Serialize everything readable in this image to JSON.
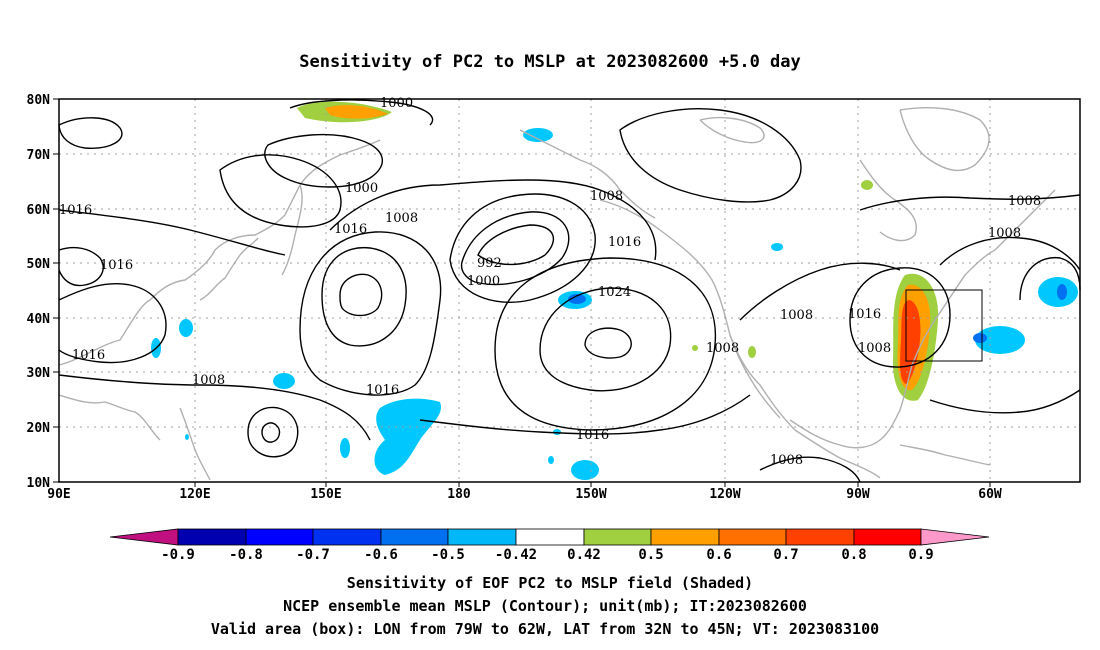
{
  "title": "Sensitivity of PC2 to MSLP at 2023082600 +5.0 day",
  "axes": {
    "lat_ticks": [
      "80N",
      "70N",
      "60N",
      "50N",
      "40N",
      "30N",
      "20N",
      "10N"
    ],
    "lon_ticks": [
      "90E",
      "120E",
      "150E",
      "180",
      "150W",
      "120W",
      "90W",
      "60W"
    ]
  },
  "contour_labels": [
    {
      "text": "1000"
    },
    {
      "text": "1000"
    },
    {
      "text": "1008"
    },
    {
      "text": "1016"
    },
    {
      "text": "1016"
    },
    {
      "text": "1016"
    },
    {
      "text": "992"
    },
    {
      "text": "1000"
    },
    {
      "text": "1008"
    },
    {
      "text": "1016"
    },
    {
      "text": "1024"
    },
    {
      "text": "1008"
    },
    {
      "text": "1016"
    },
    {
      "text": "1016"
    },
    {
      "text": "1008"
    },
    {
      "text": "1016"
    },
    {
      "text": "1008"
    },
    {
      "text": "1008"
    },
    {
      "text": "1008"
    },
    {
      "text": "1008"
    },
    {
      "text": "1008"
    },
    {
      "text": "1016"
    }
  ],
  "colorbar": {
    "labels": [
      "-0.9",
      "-0.8",
      "-0.7",
      "-0.6",
      "-0.5",
      "-0.42",
      "0.42",
      "0.5",
      "0.6",
      "0.7",
      "0.8",
      "0.9"
    ],
    "colors": [
      "#c01080",
      "#0000b0",
      "#0000ff",
      "#0030f0",
      "#0070f0",
      "#00b8f8",
      "#ffffff",
      "#a0d040",
      "#ffa000",
      "#ff7000",
      "#ff4000",
      "#ff0000",
      "#ff99cc"
    ]
  },
  "colors": {
    "land_outline": "#b0b0b0",
    "grid": "#a0a0a0",
    "contour": "#000000",
    "positive_sensitivity": "#ff7000",
    "negative_sensitivity": "#00c8ff"
  },
  "captions": {
    "line1": "Sensitivity of EOF PC2 to MSLP field (Shaded)",
    "line2": "NCEP ensemble mean MSLP (Contour); unit(mb); IT:2023082600",
    "line3": "Valid area (box): LON from 79W to 62W, LAT from 32N to 45N; VT: 2023083100"
  }
}
